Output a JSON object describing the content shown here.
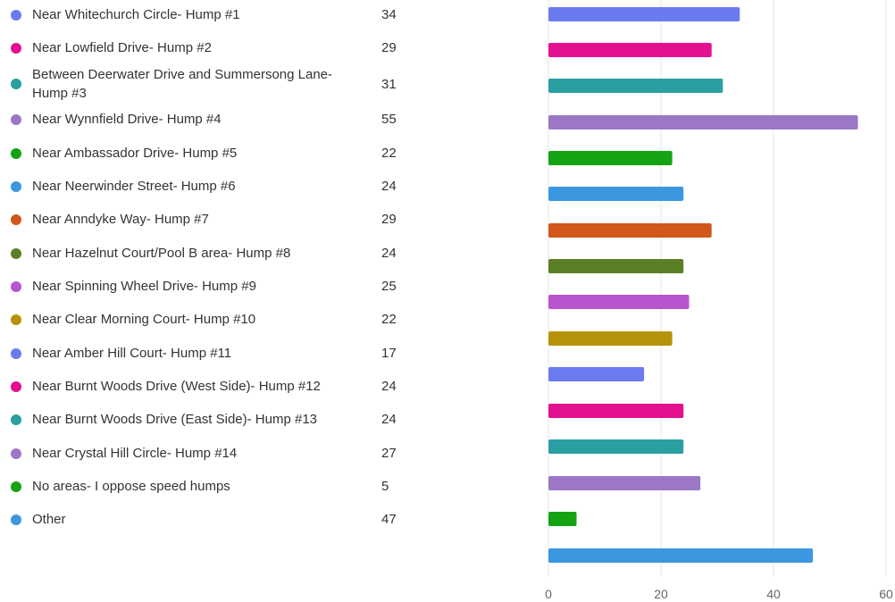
{
  "chart_data": {
    "type": "bar",
    "orientation": "horizontal",
    "categories": [
      "Near Whitechurch Circle- Hump #1",
      "Near Lowfield Drive- Hump #2",
      "Between Deerwater Drive and Summersong Lane- Hump #3",
      "Near Wynnfield Drive- Hump #4",
      "Near Ambassador Drive- Hump #5",
      "Near Neerwinder Street- Hump #6",
      "Near Anndyke Way- Hump #7",
      "Near Hazelnut Court/Pool B area- Hump #8",
      "Near Spinning Wheel Drive- Hump #9",
      "Near Clear Morning Court- Hump #10",
      "Near Amber Hill Court- Hump #11",
      "Near Burnt Woods Drive (West Side)- Hump #12",
      "Near Burnt Woods Drive (East Side)- Hump #13",
      "Near Crystal Hill Circle- Hump #14",
      "No areas- I oppose speed humps",
      "Other"
    ],
    "values": [
      34,
      29,
      31,
      55,
      22,
      24,
      29,
      24,
      25,
      22,
      17,
      24,
      24,
      27,
      5,
      47
    ],
    "colors": [
      "#6b7bef",
      "#e3108f",
      "#2a9fa3",
      "#9b77c6",
      "#13a313",
      "#3b97e0",
      "#d1571a",
      "#5b7f26",
      "#b854d0",
      "#b59309",
      "#6b7bef",
      "#e3108f",
      "#2a9fa3",
      "#9b77c6",
      "#13a313",
      "#3b97e0"
    ],
    "xlim": [
      0,
      60
    ],
    "xticks": [
      0,
      20,
      40,
      60
    ],
    "grid": true,
    "legend": "left"
  }
}
